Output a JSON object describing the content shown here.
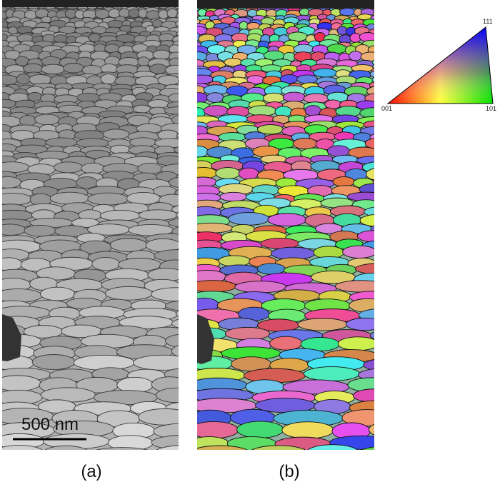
{
  "panel_a": {
    "label": "(a)",
    "scale_bar": "500 nm"
  },
  "panel_b": {
    "label": "(b)"
  },
  "ipf_legend": {
    "top": "111",
    "left": "001",
    "right": "101"
  }
}
